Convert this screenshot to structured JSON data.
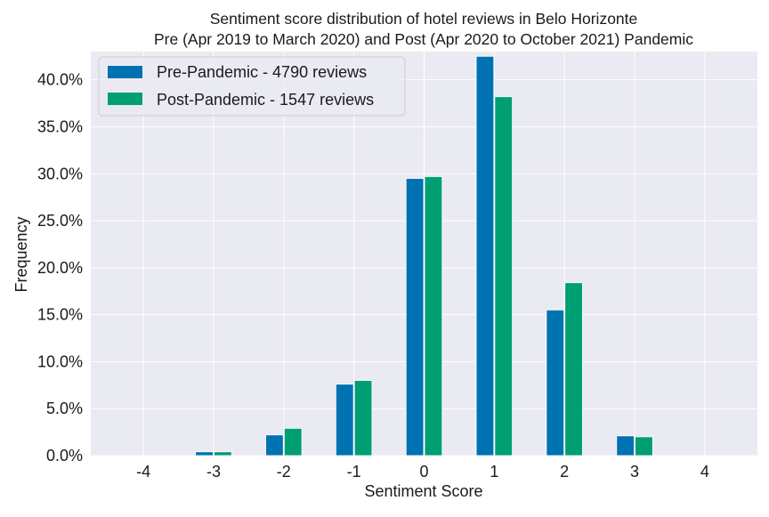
{
  "chart_data": {
    "type": "bar",
    "title_line1": "Sentiment score distribution of hotel reviews in Belo Horizonte",
    "title_line2": "Pre (Apr 2019 to March 2020) and Post (Apr 2020 to October 2021) Pandemic",
    "xlabel": "Sentiment Score",
    "ylabel": "Frequency",
    "categories": [
      "-4",
      "-3",
      "-2",
      "-1",
      "0",
      "1",
      "2",
      "3",
      "4"
    ],
    "x": [
      -4,
      -3,
      -2,
      -1,
      0,
      1,
      2,
      3,
      4
    ],
    "ylim": [
      0,
      0.43
    ],
    "yticks": [
      0.0,
      0.05,
      0.1,
      0.15,
      0.2,
      0.25,
      0.3,
      0.35,
      0.4
    ],
    "ytick_labels": [
      "0.0%",
      "5.0%",
      "10.0%",
      "15.0%",
      "20.0%",
      "25.0%",
      "30.0%",
      "35.0%",
      "40.0%"
    ],
    "grid": true,
    "legend_position": "top-left",
    "series": [
      {
        "name": "Pre-Pandemic - 4790 reviews",
        "color": "#0072b2",
        "values": [
          0.0,
          0.004,
          0.022,
          0.076,
          0.295,
          0.425,
          0.155,
          0.021,
          0.0
        ]
      },
      {
        "name": "Post-Pandemic - 1547 reviews",
        "color": "#009e73",
        "values": [
          0.0,
          0.004,
          0.029,
          0.08,
          0.297,
          0.382,
          0.184,
          0.02,
          0.0
        ]
      }
    ],
    "colors": {
      "plot_background": "#eaeaf2",
      "grid": "#ffffff"
    }
  }
}
